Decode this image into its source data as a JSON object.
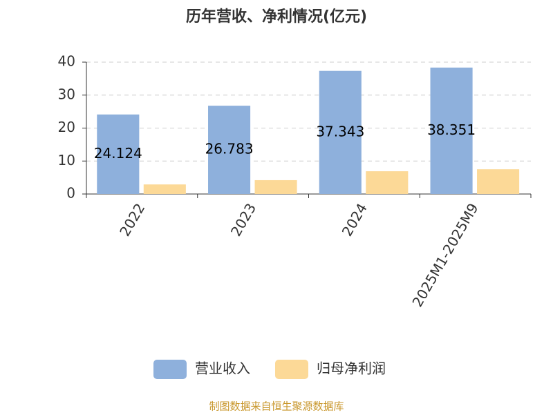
{
  "chart_data": {
    "type": "bar",
    "title": "历年营收、净利情况(亿元)",
    "categories": [
      "2022",
      "2023",
      "2024",
      "2025M1-2025M9"
    ],
    "series": [
      {
        "name": "营业收入",
        "color": "#8eb0dc",
        "values": [
          24.124,
          26.783,
          37.343,
          38.351
        ]
      },
      {
        "name": "归母净利润",
        "color": "#fcd997",
        "values": [
          2.9,
          4.2,
          6.9,
          7.5
        ]
      }
    ],
    "ylim": [
      0,
      40
    ],
    "yticks": [
      0,
      10,
      20,
      30,
      40
    ],
    "grid": true,
    "legend": "bottom",
    "source": "制图数据来自恒生聚源数据库"
  }
}
